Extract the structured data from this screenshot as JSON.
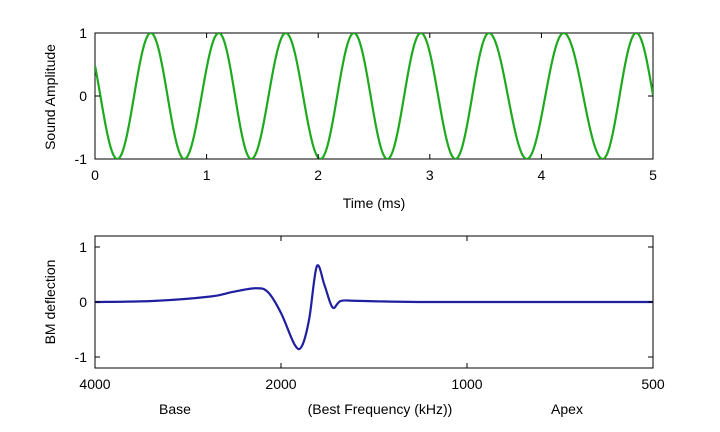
{
  "colors": {
    "top_series": "#1ea91e",
    "bottom_series": "#1f1fa0",
    "axes": "#000000"
  },
  "chart_data": [
    {
      "type": "line",
      "title": "",
      "xlabel": "Time (ms)",
      "ylabel": "Sound Amplitude",
      "xlim": [
        0,
        5
      ],
      "ylim": [
        -1,
        1
      ],
      "xticks": [
        "0",
        "1",
        "2",
        "3",
        "4",
        "5"
      ],
      "yticks": [
        "-1",
        "0",
        "1"
      ],
      "grid": false,
      "series": [
        {
          "color": "#1ea91e",
          "function": "cos(2*pi*f*(t - t0))",
          "frequency_khz": 1.65,
          "peak_times_ms": [
            0.5,
            1.11,
            1.71,
            2.32,
            2.92,
            3.53,
            4.2,
            4.85
          ],
          "trough_times_ms": [
            0.2,
            0.8,
            1.4,
            2.02,
            2.62,
            3.23,
            3.87,
            4.55
          ],
          "x_range": [
            0,
            5
          ],
          "amplitude": 1
        }
      ]
    },
    {
      "type": "line",
      "title": "",
      "xlabel": "(Best Frequency (kHz))",
      "xlabel_left": "Base",
      "xlabel_right": "Apex",
      "ylabel": "BM deflection",
      "xlim": [
        4000,
        500
      ],
      "ylim": [
        -1.2,
        1.2
      ],
      "xticks": [
        "4000",
        "2000",
        "1000",
        "500"
      ],
      "yticks": [
        "-1",
        "0",
        "1"
      ],
      "grid": false,
      "series": [
        {
          "color": "#1f1fa0",
          "x": [
            4000,
            3200,
            2600,
            2400,
            2200,
            2100,
            2000,
            1900,
            1850,
            1800,
            1750,
            1700,
            1650,
            1600,
            1500,
            1200,
            800,
            500
          ],
          "y": [
            0,
            0.02,
            0.1,
            0.18,
            0.25,
            0.18,
            -0.2,
            -0.78,
            -0.8,
            -0.3,
            0.65,
            0.3,
            -0.1,
            0.02,
            0.02,
            0,
            0,
            0
          ]
        }
      ]
    }
  ]
}
